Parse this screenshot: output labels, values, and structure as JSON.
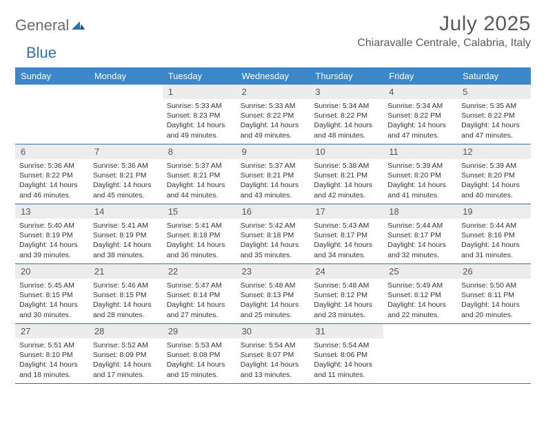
{
  "brand": {
    "word1": "General",
    "word2": "Blue",
    "color_general": "#6a6a6a",
    "color_blue": "#2f6fad",
    "mark_color": "#2f6fad"
  },
  "title": "July 2025",
  "location": "Chiaravalle Centrale, Calabria, Italy",
  "colors": {
    "header_bg": "#3b87c8",
    "header_text": "#ffffff",
    "daynum_bg": "#ececec",
    "week_border": "#2f6fad",
    "body_text": "#333333",
    "title_text": "#5a5a5a"
  },
  "weekdays": [
    "Sunday",
    "Monday",
    "Tuesday",
    "Wednesday",
    "Thursday",
    "Friday",
    "Saturday"
  ],
  "weeks": [
    [
      {
        "empty": true
      },
      {
        "empty": true
      },
      {
        "num": "1",
        "sunrise": "Sunrise: 5:33 AM",
        "sunset": "Sunset: 8:23 PM",
        "daylight": "Daylight: 14 hours and 49 minutes."
      },
      {
        "num": "2",
        "sunrise": "Sunrise: 5:33 AM",
        "sunset": "Sunset: 8:22 PM",
        "daylight": "Daylight: 14 hours and 49 minutes."
      },
      {
        "num": "3",
        "sunrise": "Sunrise: 5:34 AM",
        "sunset": "Sunset: 8:22 PM",
        "daylight": "Daylight: 14 hours and 48 minutes."
      },
      {
        "num": "4",
        "sunrise": "Sunrise: 5:34 AM",
        "sunset": "Sunset: 8:22 PM",
        "daylight": "Daylight: 14 hours and 47 minutes."
      },
      {
        "num": "5",
        "sunrise": "Sunrise: 5:35 AM",
        "sunset": "Sunset: 8:22 PM",
        "daylight": "Daylight: 14 hours and 47 minutes."
      }
    ],
    [
      {
        "num": "6",
        "sunrise": "Sunrise: 5:36 AM",
        "sunset": "Sunset: 8:22 PM",
        "daylight": "Daylight: 14 hours and 46 minutes."
      },
      {
        "num": "7",
        "sunrise": "Sunrise: 5:36 AM",
        "sunset": "Sunset: 8:21 PM",
        "daylight": "Daylight: 14 hours and 45 minutes."
      },
      {
        "num": "8",
        "sunrise": "Sunrise: 5:37 AM",
        "sunset": "Sunset: 8:21 PM",
        "daylight": "Daylight: 14 hours and 44 minutes."
      },
      {
        "num": "9",
        "sunrise": "Sunrise: 5:37 AM",
        "sunset": "Sunset: 8:21 PM",
        "daylight": "Daylight: 14 hours and 43 minutes."
      },
      {
        "num": "10",
        "sunrise": "Sunrise: 5:38 AM",
        "sunset": "Sunset: 8:21 PM",
        "daylight": "Daylight: 14 hours and 42 minutes."
      },
      {
        "num": "11",
        "sunrise": "Sunrise: 5:39 AM",
        "sunset": "Sunset: 8:20 PM",
        "daylight": "Daylight: 14 hours and 41 minutes."
      },
      {
        "num": "12",
        "sunrise": "Sunrise: 5:39 AM",
        "sunset": "Sunset: 8:20 PM",
        "daylight": "Daylight: 14 hours and 40 minutes."
      }
    ],
    [
      {
        "num": "13",
        "sunrise": "Sunrise: 5:40 AM",
        "sunset": "Sunset: 8:19 PM",
        "daylight": "Daylight: 14 hours and 39 minutes."
      },
      {
        "num": "14",
        "sunrise": "Sunrise: 5:41 AM",
        "sunset": "Sunset: 8:19 PM",
        "daylight": "Daylight: 14 hours and 38 minutes."
      },
      {
        "num": "15",
        "sunrise": "Sunrise: 5:41 AM",
        "sunset": "Sunset: 8:18 PM",
        "daylight": "Daylight: 14 hours and 36 minutes."
      },
      {
        "num": "16",
        "sunrise": "Sunrise: 5:42 AM",
        "sunset": "Sunset: 8:18 PM",
        "daylight": "Daylight: 14 hours and 35 minutes."
      },
      {
        "num": "17",
        "sunrise": "Sunrise: 5:43 AM",
        "sunset": "Sunset: 8:17 PM",
        "daylight": "Daylight: 14 hours and 34 minutes."
      },
      {
        "num": "18",
        "sunrise": "Sunrise: 5:44 AM",
        "sunset": "Sunset: 8:17 PM",
        "daylight": "Daylight: 14 hours and 32 minutes."
      },
      {
        "num": "19",
        "sunrise": "Sunrise: 5:44 AM",
        "sunset": "Sunset: 8:16 PM",
        "daylight": "Daylight: 14 hours and 31 minutes."
      }
    ],
    [
      {
        "num": "20",
        "sunrise": "Sunrise: 5:45 AM",
        "sunset": "Sunset: 8:15 PM",
        "daylight": "Daylight: 14 hours and 30 minutes."
      },
      {
        "num": "21",
        "sunrise": "Sunrise: 5:46 AM",
        "sunset": "Sunset: 8:15 PM",
        "daylight": "Daylight: 14 hours and 28 minutes."
      },
      {
        "num": "22",
        "sunrise": "Sunrise: 5:47 AM",
        "sunset": "Sunset: 8:14 PM",
        "daylight": "Daylight: 14 hours and 27 minutes."
      },
      {
        "num": "23",
        "sunrise": "Sunrise: 5:48 AM",
        "sunset": "Sunset: 8:13 PM",
        "daylight": "Daylight: 14 hours and 25 minutes."
      },
      {
        "num": "24",
        "sunrise": "Sunrise: 5:48 AM",
        "sunset": "Sunset: 8:12 PM",
        "daylight": "Daylight: 14 hours and 23 minutes."
      },
      {
        "num": "25",
        "sunrise": "Sunrise: 5:49 AM",
        "sunset": "Sunset: 8:12 PM",
        "daylight": "Daylight: 14 hours and 22 minutes."
      },
      {
        "num": "26",
        "sunrise": "Sunrise: 5:50 AM",
        "sunset": "Sunset: 8:11 PM",
        "daylight": "Daylight: 14 hours and 20 minutes."
      }
    ],
    [
      {
        "num": "27",
        "sunrise": "Sunrise: 5:51 AM",
        "sunset": "Sunset: 8:10 PM",
        "daylight": "Daylight: 14 hours and 18 minutes."
      },
      {
        "num": "28",
        "sunrise": "Sunrise: 5:52 AM",
        "sunset": "Sunset: 8:09 PM",
        "daylight": "Daylight: 14 hours and 17 minutes."
      },
      {
        "num": "29",
        "sunrise": "Sunrise: 5:53 AM",
        "sunset": "Sunset: 8:08 PM",
        "daylight": "Daylight: 14 hours and 15 minutes."
      },
      {
        "num": "30",
        "sunrise": "Sunrise: 5:54 AM",
        "sunset": "Sunset: 8:07 PM",
        "daylight": "Daylight: 14 hours and 13 minutes."
      },
      {
        "num": "31",
        "sunrise": "Sunrise: 5:54 AM",
        "sunset": "Sunset: 8:06 PM",
        "daylight": "Daylight: 14 hours and 11 minutes."
      },
      {
        "empty": true
      },
      {
        "empty": true
      }
    ]
  ]
}
